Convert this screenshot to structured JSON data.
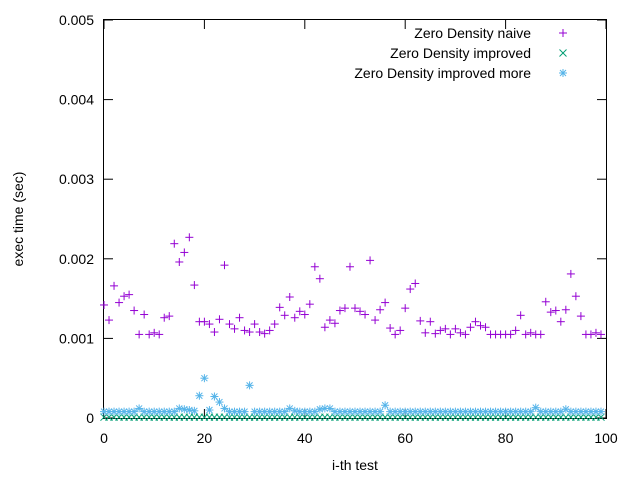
{
  "chart_data": {
    "type": "scatter",
    "title": "",
    "xlabel": "i-th test",
    "ylabel": "exec time (sec)",
    "xlim": [
      0,
      100
    ],
    "ylim": [
      0,
      0.005
    ],
    "x_ticks": [
      0,
      20,
      40,
      60,
      80,
      100
    ],
    "x_tick_labels": [
      "0",
      "20",
      "40",
      "60",
      "80",
      "100"
    ],
    "y_ticks": [
      0,
      0.001,
      0.002,
      0.003,
      0.004,
      0.005
    ],
    "y_tick_labels": [
      "0",
      "0.001",
      "0.002",
      "0.003",
      "0.004",
      "0.005"
    ],
    "grid": false,
    "legend_position": "top-right",
    "series": [
      {
        "name": "Zero Density naive",
        "marker": "plus",
        "color": "#9400d3",
        "x": [
          0,
          1,
          2,
          3,
          4,
          5,
          6,
          7,
          8,
          9,
          10,
          11,
          12,
          13,
          14,
          15,
          16,
          17,
          18,
          19,
          20,
          21,
          22,
          23,
          24,
          25,
          26,
          27,
          28,
          29,
          30,
          31,
          32,
          33,
          34,
          35,
          36,
          37,
          38,
          39,
          40,
          41,
          42,
          43,
          44,
          45,
          46,
          47,
          48,
          49,
          50,
          51,
          52,
          53,
          54,
          55,
          56,
          57,
          58,
          59,
          60,
          61,
          62,
          63,
          64,
          65,
          66,
          67,
          68,
          69,
          70,
          71,
          72,
          73,
          74,
          75,
          76,
          77,
          78,
          79,
          80,
          81,
          82,
          83,
          84,
          85,
          86,
          87,
          88,
          89,
          90,
          91,
          92,
          93,
          94,
          95,
          96,
          97,
          98,
          99
        ],
        "y": [
          0.00142,
          0.00123,
          0.00166,
          0.00145,
          0.00153,
          0.00155,
          0.00135,
          0.00105,
          0.0013,
          0.00105,
          0.00107,
          0.00105,
          0.00126,
          0.00128,
          0.00219,
          0.00196,
          0.00208,
          0.00227,
          0.00167,
          0.00121,
          0.00121,
          0.00118,
          0.00108,
          0.00124,
          0.00192,
          0.00118,
          0.00112,
          0.00126,
          0.0011,
          0.00108,
          0.00118,
          0.00108,
          0.00106,
          0.0011,
          0.00118,
          0.00139,
          0.00129,
          0.00152,
          0.00126,
          0.00134,
          0.0013,
          0.00143,
          0.0019,
          0.00175,
          0.00114,
          0.00123,
          0.00119,
          0.00135,
          0.00138,
          0.0019,
          0.00138,
          0.00134,
          0.0013,
          0.00198,
          0.00123,
          0.00136,
          0.00145,
          0.00113,
          0.00105,
          0.0011,
          0.00138,
          0.00162,
          0.00169,
          0.00122,
          0.00107,
          0.00121,
          0.00106,
          0.0011,
          0.00112,
          0.00105,
          0.00112,
          0.00107,
          0.00105,
          0.00114,
          0.00121,
          0.00116,
          0.00114,
          0.00105,
          0.00105,
          0.00105,
          0.00105,
          0.00105,
          0.0011,
          0.00129,
          0.00105,
          0.00107,
          0.00105,
          0.00105,
          0.00146,
          0.00133,
          0.00135,
          0.00121,
          0.00136,
          0.00181,
          0.00153,
          0.00128,
          0.00105,
          0.00105,
          0.00107,
          0.00105
        ]
      },
      {
        "name": "Zero Density improved",
        "marker": "cross",
        "color": "#009e73",
        "x": [
          0,
          1,
          2,
          3,
          4,
          5,
          6,
          7,
          8,
          9,
          10,
          11,
          12,
          13,
          14,
          15,
          16,
          17,
          18,
          19,
          20,
          21,
          22,
          23,
          24,
          25,
          26,
          27,
          28,
          29,
          30,
          31,
          32,
          33,
          34,
          35,
          36,
          37,
          38,
          39,
          40,
          41,
          42,
          43,
          44,
          45,
          46,
          47,
          48,
          49,
          50,
          51,
          52,
          53,
          54,
          55,
          56,
          57,
          58,
          59,
          60,
          61,
          62,
          63,
          64,
          65,
          66,
          67,
          68,
          69,
          70,
          71,
          72,
          73,
          74,
          75,
          76,
          77,
          78,
          79,
          80,
          81,
          82,
          83,
          84,
          85,
          86,
          87,
          88,
          89,
          90,
          91,
          92,
          93,
          94,
          95,
          96,
          97,
          98,
          99
        ],
        "y": [
          1e-05,
          1e-05,
          1e-05,
          1e-05,
          1e-05,
          1e-05,
          1e-05,
          1e-05,
          1e-05,
          1e-05,
          1e-05,
          1e-05,
          1e-05,
          1e-05,
          1e-05,
          1e-05,
          1e-05,
          1e-05,
          1e-05,
          1e-05,
          1e-05,
          1e-05,
          1e-05,
          1e-05,
          1e-05,
          1e-05,
          1e-05,
          1e-05,
          1e-05,
          1e-05,
          1e-05,
          1e-05,
          1e-05,
          1e-05,
          1e-05,
          1e-05,
          1e-05,
          1e-05,
          1e-05,
          1e-05,
          1e-05,
          1e-05,
          1e-05,
          1e-05,
          1e-05,
          1e-05,
          1e-05,
          1e-05,
          1e-05,
          1e-05,
          1e-05,
          1e-05,
          1e-05,
          1e-05,
          1e-05,
          1e-05,
          1e-05,
          1e-05,
          1e-05,
          1e-05,
          1e-05,
          1e-05,
          1e-05,
          1e-05,
          1e-05,
          1e-05,
          1e-05,
          1e-05,
          1e-05,
          1e-05,
          1e-05,
          1e-05,
          1e-05,
          1e-05,
          1e-05,
          1e-05,
          1e-05,
          1e-05,
          1e-05,
          1e-05,
          1e-05,
          1e-05,
          1e-05,
          1e-05,
          1e-05,
          1e-05,
          1e-05,
          1e-05,
          1e-05,
          1e-05,
          1e-05,
          1e-05,
          1e-05,
          1e-05,
          1e-05,
          1e-05,
          1e-05,
          1e-05,
          1e-05,
          1e-05
        ]
      },
      {
        "name": "Zero Density improved more",
        "marker": "star",
        "color": "#56b4e9",
        "x": [
          0,
          1,
          2,
          3,
          4,
          5,
          6,
          7,
          8,
          9,
          10,
          11,
          12,
          13,
          14,
          15,
          16,
          17,
          18,
          19,
          20,
          21,
          22,
          23,
          24,
          25,
          26,
          27,
          28,
          29,
          30,
          31,
          32,
          33,
          34,
          35,
          36,
          37,
          38,
          39,
          40,
          41,
          42,
          43,
          44,
          45,
          46,
          47,
          48,
          49,
          50,
          51,
          52,
          53,
          54,
          55,
          56,
          57,
          58,
          59,
          60,
          61,
          62,
          63,
          64,
          65,
          66,
          67,
          68,
          69,
          70,
          71,
          72,
          73,
          74,
          75,
          76,
          77,
          78,
          79,
          80,
          81,
          82,
          83,
          84,
          85,
          86,
          87,
          88,
          89,
          90,
          91,
          92,
          93,
          94,
          95,
          96,
          97,
          98,
          99
        ],
        "y": [
          8e-05,
          8e-05,
          8e-05,
          8e-05,
          8e-05,
          8e-05,
          8e-05,
          0.00012,
          8e-05,
          8e-05,
          8e-05,
          8e-05,
          8e-05,
          8e-05,
          8e-05,
          0.00012,
          0.00011,
          0.0001,
          9e-05,
          0.00028,
          0.0005,
          0.0001,
          0.00027,
          0.0002,
          0.00012,
          8e-05,
          8e-05,
          8e-05,
          8e-05,
          0.00041,
          8e-05,
          8e-05,
          8e-05,
          8e-05,
          8e-05,
          8e-05,
          8e-05,
          0.00012,
          9e-05,
          8e-05,
          8e-05,
          8e-05,
          8e-05,
          0.00011,
          0.00012,
          0.00012,
          8e-05,
          8e-05,
          8e-05,
          8e-05,
          8e-05,
          8e-05,
          8e-05,
          8e-05,
          8e-05,
          8e-05,
          0.00016,
          8e-05,
          8e-05,
          8e-05,
          8e-05,
          8e-05,
          8e-05,
          8e-05,
          8e-05,
          8e-05,
          8e-05,
          8e-05,
          8e-05,
          8e-05,
          8e-05,
          8e-05,
          8e-05,
          8e-05,
          8e-05,
          8e-05,
          8e-05,
          8e-05,
          8e-05,
          8e-05,
          8e-05,
          8e-05,
          8e-05,
          8e-05,
          8e-05,
          8e-05,
          0.00013,
          8e-05,
          8e-05,
          8e-05,
          8e-05,
          8e-05,
          0.00011,
          8e-05,
          8e-05,
          8e-05,
          8e-05,
          8e-05,
          8e-05,
          8e-05
        ]
      }
    ]
  }
}
